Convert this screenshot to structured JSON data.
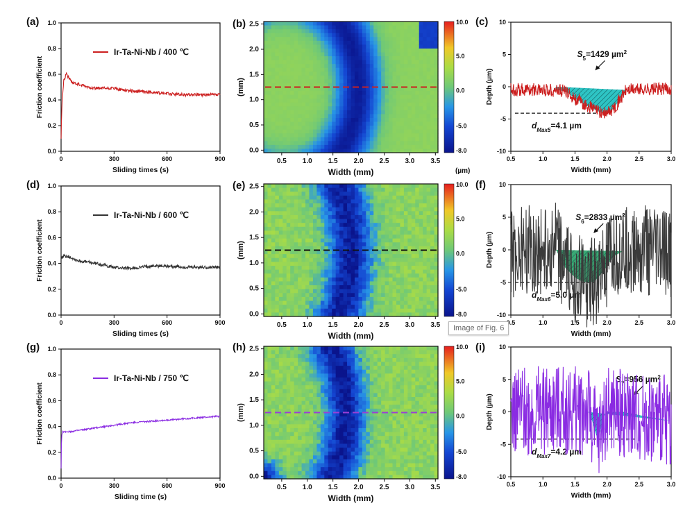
{
  "figure": {
    "tooltip": "Image of Fig. 6",
    "colorbar_unit": "(µm)"
  },
  "chart_data": [
    {
      "panel": "(a)",
      "type": "line",
      "legend": "Ir-Ta-Ni-Nb / 400 ℃",
      "color": "#cc1f1f",
      "xlabel": "Sliding times (s)",
      "ylabel": "Friction coefficient",
      "xlim": [
        0,
        900
      ],
      "ylim": [
        0,
        1.0
      ],
      "xticks": [
        "0",
        "300",
        "600",
        "900"
      ],
      "yticks": [
        "0.0",
        "0.2",
        "0.4",
        "0.6",
        "0.8",
        "1.0"
      ],
      "x": [
        0,
        5,
        15,
        30,
        45,
        60,
        100,
        150,
        200,
        300,
        400,
        500,
        600,
        700,
        800,
        900
      ],
      "y": [
        0.1,
        0.38,
        0.55,
        0.6,
        0.57,
        0.54,
        0.52,
        0.5,
        0.49,
        0.49,
        0.47,
        0.46,
        0.45,
        0.44,
        0.44,
        0.44
      ],
      "noise": 0.012
    },
    {
      "panel": "(b)",
      "type": "heatmap",
      "xlabel": "Width (mm)",
      "ylabel": "(mm)",
      "xlim": [
        0.15,
        3.55
      ],
      "ylim": [
        -0.05,
        2.55
      ],
      "xticks": [
        "0.5",
        "1.0",
        "1.5",
        "2.0",
        "2.5",
        "3.0",
        "3.5"
      ],
      "yticks": [
        "0.0",
        "0.5",
        "1.0",
        "1.5",
        "2.0",
        "2.5"
      ],
      "colorbar_ticks": [
        "10.0",
        "5.0",
        "0.0",
        "-5.0",
        "-8.0"
      ],
      "section_y": 1.25,
      "section_color": "#cc1f1f"
    },
    {
      "panel": "(c)",
      "type": "line",
      "xlabel": "Width (mm)",
      "ylabel": "Depth (µm)",
      "xlim": [
        0.5,
        3.0
      ],
      "ylim": [
        -10,
        10
      ],
      "xticks": [
        "0.5",
        "1.0",
        "1.5",
        "2.0",
        "2.5",
        "3.0"
      ],
      "yticks": [
        "10",
        "5",
        "0",
        "-5",
        "-10"
      ],
      "color": "#cc1f1f",
      "fill": "#2ec4c4",
      "x": [
        0.5,
        1.2,
        1.35,
        1.5,
        1.65,
        1.8,
        1.9,
        2.0,
        2.1,
        2.2,
        2.3,
        2.5,
        3.0
      ],
      "y": [
        -0.4,
        -0.5,
        -0.7,
        -1.8,
        -2.8,
        -3.5,
        -4.0,
        -4.1,
        -3.4,
        -2.0,
        -0.5,
        -0.4,
        -0.3
      ],
      "area_label": "S5=1429 µm2",
      "depth_label": "dMax5=4.1 µm",
      "dmax": -4.1,
      "noise": 0.05
    },
    {
      "panel": "(d)",
      "type": "line",
      "legend": "Ir-Ta-Ni-Nb / 600 ℃",
      "color": "#333333",
      "xlabel": "Sliding times (s)",
      "ylabel": "Friction coefficient",
      "xlim": [
        0,
        900
      ],
      "ylim": [
        0,
        1.0
      ],
      "xticks": [
        "0",
        "300",
        "600",
        "900"
      ],
      "yticks": [
        "0.0",
        "0.2",
        "0.4",
        "0.6",
        "0.8",
        "1.0"
      ],
      "x": [
        0,
        20,
        50,
        100,
        150,
        200,
        300,
        400,
        500,
        600,
        700,
        800,
        900
      ],
      "y": [
        0.44,
        0.46,
        0.45,
        0.42,
        0.41,
        0.4,
        0.37,
        0.36,
        0.38,
        0.38,
        0.37,
        0.37,
        0.37
      ],
      "noise": 0.012
    },
    {
      "panel": "(e)",
      "type": "heatmap",
      "xlabel": "Width (mm)",
      "ylabel": "(mm)",
      "xlim": [
        0.15,
        3.55
      ],
      "ylim": [
        -0.05,
        2.55
      ],
      "xticks": [
        "0.5",
        "1.0",
        "1.5",
        "2.0",
        "2.5",
        "3.0",
        "3.5"
      ],
      "yticks": [
        "0.0",
        "0.5",
        "1.0",
        "1.5",
        "2.0",
        "2.5"
      ],
      "colorbar_ticks": [
        "10.0",
        "5.0",
        "0.0",
        "-5.0",
        "-8.0"
      ],
      "section_y": 1.25,
      "section_color": "#111111"
    },
    {
      "panel": "(f)",
      "type": "line",
      "xlabel": "Width (mm)",
      "ylabel": "Depth (µm)",
      "xlim": [
        0.5,
        3.0
      ],
      "ylim": [
        -10,
        10
      ],
      "xticks": [
        "0.5",
        "1.0",
        "1.5",
        "2.0",
        "2.5",
        "3.0"
      ],
      "yticks": [
        "10",
        "5",
        "0",
        "-5",
        "-10"
      ],
      "color": "#3a3a3a",
      "fill": "#3aa873",
      "x": [
        0.5,
        1.0,
        1.2,
        1.25,
        1.35,
        1.5,
        1.6,
        1.7,
        1.8,
        1.9,
        2.0,
        2.1,
        2.25,
        2.5,
        3.0
      ],
      "y": [
        -0.3,
        0.0,
        0.3,
        -1.0,
        -2.8,
        -4.2,
        -4.8,
        -5.0,
        -4.9,
        -3.8,
        -2.5,
        -1.0,
        -0.2,
        0.0,
        -0.5
      ],
      "area_label": "S6=2833 µm2",
      "depth_label": "dMax6=5.0 µm",
      "dmax": -5.0,
      "noise": 0.35
    },
    {
      "panel": "(g)",
      "type": "line",
      "legend": "Ir-Ta-Ni-Nb / 750 ℃",
      "color": "#8a2be2",
      "xlabel": "Sliding time (s)",
      "ylabel": "Friction coefficient",
      "xlim": [
        0,
        900
      ],
      "ylim": [
        0,
        1.0
      ],
      "xticks": [
        "0",
        "300",
        "600",
        "900"
      ],
      "yticks": [
        "0.0",
        "0.2",
        "0.4",
        "0.6",
        "0.8",
        "1.0"
      ],
      "x": [
        0,
        3,
        10,
        50,
        100,
        200,
        300,
        400,
        500,
        600,
        700,
        800,
        900
      ],
      "y": [
        0.08,
        0.33,
        0.36,
        0.36,
        0.37,
        0.39,
        0.41,
        0.43,
        0.44,
        0.45,
        0.46,
        0.47,
        0.48
      ],
      "noise": 0.006
    },
    {
      "panel": "(h)",
      "type": "heatmap",
      "xlabel": "Width (mm)",
      "ylabel": "(mm)",
      "xlim": [
        0.15,
        3.55
      ],
      "ylim": [
        -0.05,
        2.55
      ],
      "xticks": [
        "0.5",
        "1.0",
        "1.5",
        "2.0",
        "2.5",
        "3.0",
        "3.5"
      ],
      "yticks": [
        "0.0",
        "0.5",
        "1.0",
        "1.5",
        "2.0",
        "2.5"
      ],
      "colorbar_ticks": [
        "10.0",
        "5.0",
        "0.0",
        "-5.0",
        "-8.0"
      ],
      "section_y": 1.25,
      "section_color": "#9b3fd6"
    },
    {
      "panel": "(i)",
      "type": "line",
      "xlabel": "Width (mm)",
      "ylabel": "Depth (µm)",
      "xlim": [
        0.5,
        3.0
      ],
      "ylim": [
        -10,
        10
      ],
      "xticks": [
        "0.5",
        "1.0",
        "1.5",
        "2.0",
        "2.5",
        "3.0"
      ],
      "yticks": [
        "10",
        "5",
        "0",
        "-5",
        "-10"
      ],
      "color": "#8a2be2",
      "fill": "#2ec4c4",
      "x": [
        0.5,
        1.0,
        1.5,
        1.7,
        1.75,
        1.8,
        1.85,
        1.9,
        1.95,
        2.0,
        2.2,
        2.5,
        3.0
      ],
      "y": [
        0.0,
        0.2,
        0.2,
        0.4,
        -0.8,
        -2.5,
        -4.2,
        -2.8,
        -1.0,
        0.3,
        0.1,
        -0.5,
        -1.4
      ],
      "area_label": "S7=956 µm2",
      "depth_label": "dMax7=4.2 µm",
      "dmax": -4.2,
      "noise": 0.35
    }
  ]
}
